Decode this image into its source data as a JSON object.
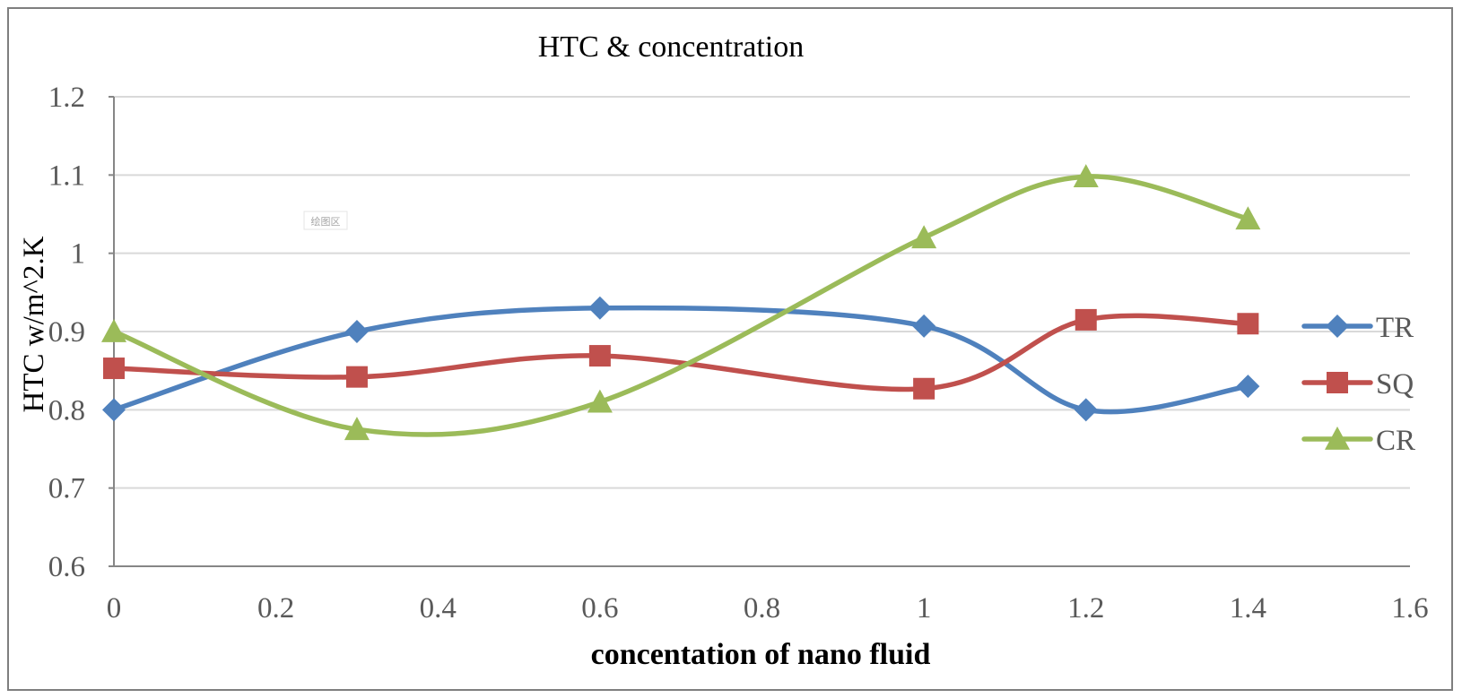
{
  "chart_data": {
    "type": "line",
    "title": "HTC & concentration",
    "xlabel": "concentation of nano fluid",
    "ylabel": "HTC w/m^2.K",
    "xlim": [
      0,
      1.6
    ],
    "ylim": [
      0.6,
      1.2
    ],
    "x_ticks": [
      "0",
      "0.2",
      "0.4",
      "0.6",
      "0.8",
      "1",
      "1.2",
      "1.4",
      "1.6"
    ],
    "y_ticks": [
      "0.6",
      "0.7",
      "0.8",
      "0.9",
      "1",
      "1.1",
      "1.2"
    ],
    "grid": "horizontal",
    "legend_position": "right",
    "smoothed": true,
    "x": [
      0,
      0.3,
      0.6,
      1.0,
      1.2,
      1.4
    ],
    "series": [
      {
        "name": "TR",
        "marker": "diamond",
        "color": "#4f81bd",
        "values": [
          0.8,
          0.9,
          0.93,
          0.907,
          0.8,
          0.83
        ]
      },
      {
        "name": "SQ",
        "marker": "square",
        "color": "#c0504d",
        "values": [
          0.853,
          0.842,
          0.869,
          0.827,
          0.915,
          0.91
        ]
      },
      {
        "name": "CR",
        "marker": "triangle",
        "color": "#9bbb59",
        "values": [
          0.9,
          0.775,
          0.81,
          1.02,
          1.098,
          1.044
        ]
      }
    ],
    "plot_area_tag": "绘图区"
  }
}
